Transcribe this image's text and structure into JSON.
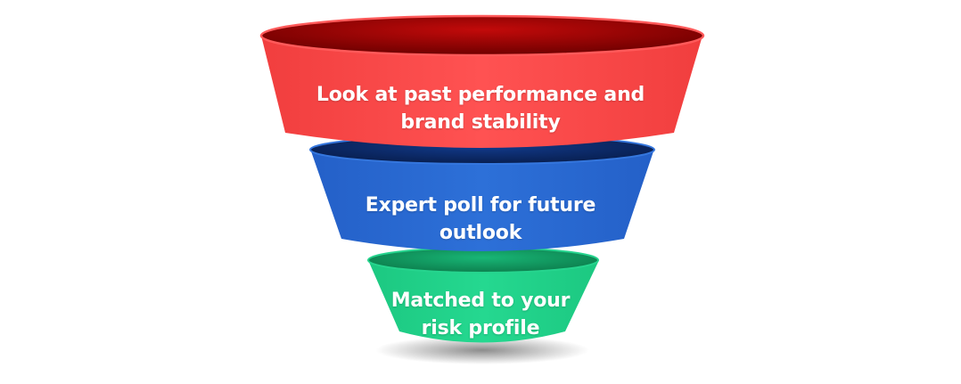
{
  "stages": [
    {
      "line1": "Look at past performance and",
      "line2": "brand stability",
      "color": "#FF4E4E",
      "rim_color": "#8E0000"
    },
    {
      "line1": "Expert poll for future",
      "line2": "outlook",
      "color": "#2B6CD3",
      "rim_color": "#0A2B6E"
    },
    {
      "line1": "Matched to your",
      "line2": "risk profile",
      "color": "#22D38B",
      "rim_color": "#0E8A55"
    }
  ]
}
